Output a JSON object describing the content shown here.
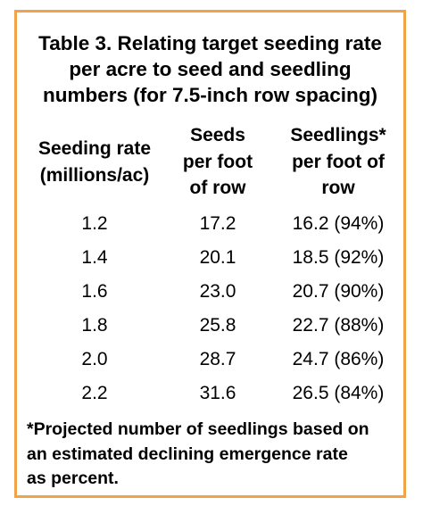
{
  "table": {
    "title_lines": [
      "Table 3. Relating target seeding rate",
      "per acre to seed and seedling",
      "numbers (for 7.5-inch row spacing)"
    ],
    "headers": {
      "seeding_rate": [
        "Seeding rate",
        "(millions/ac)"
      ],
      "seeds": [
        "Seeds",
        "per foot",
        "of row"
      ],
      "seedlings": [
        "Seedlings*",
        "per foot of",
        "row"
      ]
    },
    "rows": [
      {
        "rate": "1.2",
        "seeds": "17.2",
        "seedlings": "16.2 (94%)"
      },
      {
        "rate": "1.4",
        "seeds": "20.1",
        "seedlings": "18.5 (92%)"
      },
      {
        "rate": "1.6",
        "seeds": "23.0",
        "seedlings": "20.7 (90%)"
      },
      {
        "rate": "1.8",
        "seeds": "25.8",
        "seedlings": "22.7 (88%)"
      },
      {
        "rate": "2.0",
        "seeds": "28.7",
        "seedlings": "24.7 (86%)"
      },
      {
        "rate": "2.2",
        "seeds": "31.6",
        "seedlings": "26.5 (84%)"
      }
    ],
    "footnote_lines": [
      "*Projected number of seedlings based on",
      "an estimated declining emergence rate",
      "as percent."
    ]
  },
  "colors": {
    "border": "#f0a347",
    "text": "#000000",
    "background": "#ffffff"
  }
}
